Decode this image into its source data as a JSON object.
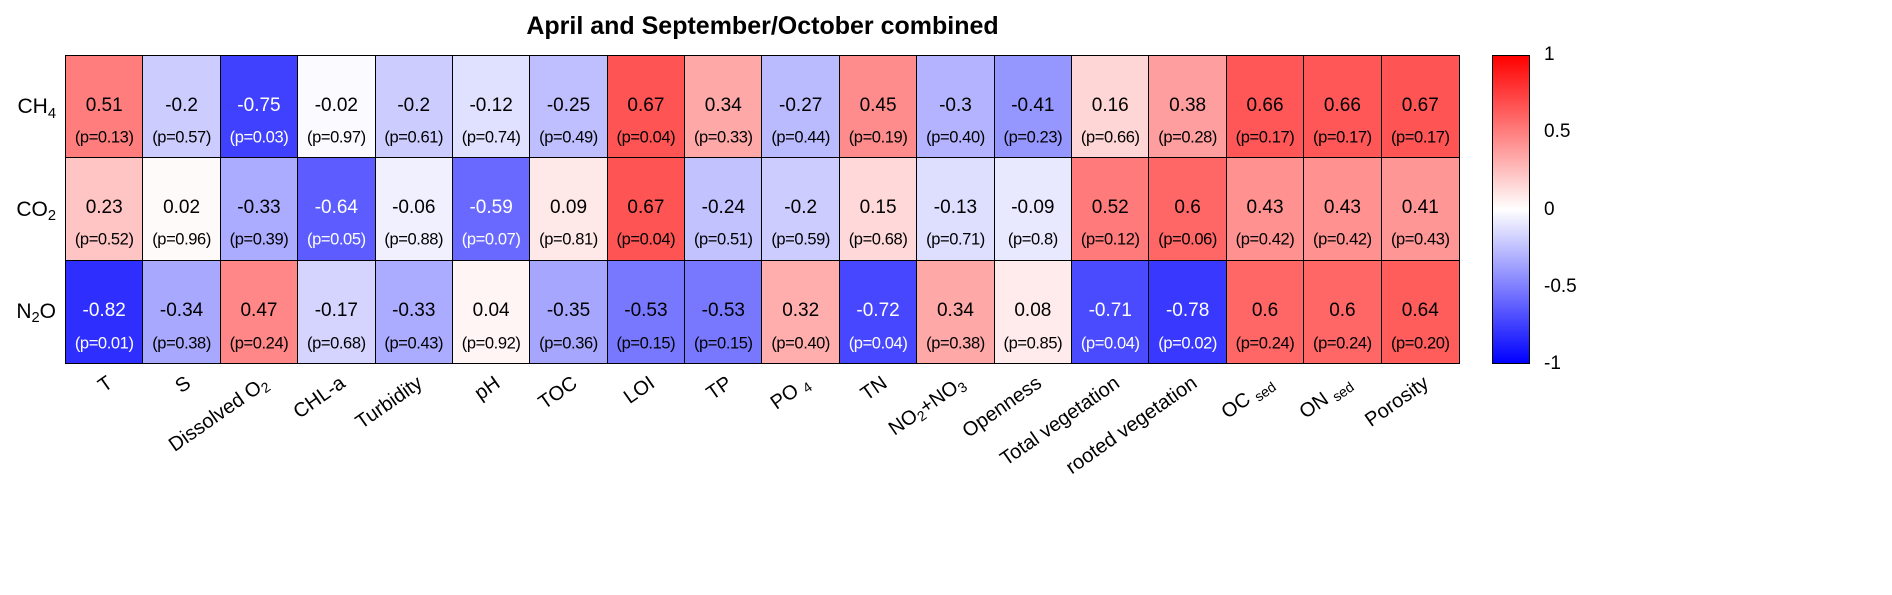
{
  "title": "April and September/October combined",
  "chart_data": {
    "type": "heatmap",
    "title": "April and September/October combined",
    "x_categories": [
      "T",
      "S",
      "Dissolved O2",
      "CHL-a",
      "Turbidity",
      "pH",
      "TOC",
      "LOI",
      "TP",
      "PO4",
      "TN",
      "NO2+NO3",
      "Openness",
      "Total vegetation",
      "rooted vegetation",
      "OC sed",
      "ON sed",
      "Porosity"
    ],
    "y_categories": [
      "CH4",
      "CO2",
      "N2O"
    ],
    "row_label_segments": [
      [
        {
          "t": "CH"
        },
        {
          "t": "4",
          "s": 1
        }
      ],
      [
        {
          "t": "CO"
        },
        {
          "t": "2",
          "s": 1
        }
      ],
      [
        {
          "t": "N"
        },
        {
          "t": "2",
          "s": 1
        },
        {
          "t": "O"
        }
      ]
    ],
    "col_label_segments": [
      [
        {
          "t": "T"
        }
      ],
      [
        {
          "t": "S"
        }
      ],
      [
        {
          "t": "Dissolved O"
        },
        {
          "t": "2",
          "s": 1
        }
      ],
      [
        {
          "t": "CHL-a"
        }
      ],
      [
        {
          "t": "Turbidity"
        }
      ],
      [
        {
          "t": "pH"
        }
      ],
      [
        {
          "t": "TOC"
        }
      ],
      [
        {
          "t": "LOI"
        }
      ],
      [
        {
          "t": "TP"
        }
      ],
      [
        {
          "t": "PO "
        },
        {
          "t": "4",
          "s": 1
        }
      ],
      [
        {
          "t": "TN"
        }
      ],
      [
        {
          "t": "NO"
        },
        {
          "t": "2",
          "s": 1
        },
        {
          "t": "+NO"
        },
        {
          "t": "3",
          "s": 1
        }
      ],
      [
        {
          "t": "Openness"
        }
      ],
      [
        {
          "t": "Total vegetation"
        }
      ],
      [
        {
          "t": "rooted vegetation"
        }
      ],
      [
        {
          "t": "OC "
        },
        {
          "t": "sed",
          "s": 1
        }
      ],
      [
        {
          "t": "ON "
        },
        {
          "t": "sed",
          "s": 1
        }
      ],
      [
        {
          "t": "Porosity"
        }
      ]
    ],
    "values": [
      [
        "0.51",
        "-0.2",
        "-0.75",
        "-0.02",
        "-0.2",
        "-0.12",
        "-0.25",
        "0.67",
        "0.34",
        "-0.27",
        "0.45",
        "-0.3",
        "-0.41",
        "0.16",
        "0.38",
        "0.66",
        "0.66",
        "0.67"
      ],
      [
        "0.23",
        "0.02",
        "-0.33",
        "-0.64",
        "-0.06",
        "-0.59",
        "0.09",
        "0.67",
        "-0.24",
        "-0.2",
        "0.15",
        "-0.13",
        "-0.09",
        "0.52",
        "0.6",
        "0.43",
        "0.43",
        "0.41"
      ],
      [
        "-0.82",
        "-0.34",
        "0.47",
        "-0.17",
        "-0.33",
        "0.04",
        "-0.35",
        "-0.53",
        "-0.53",
        "0.32",
        "-0.72",
        "0.34",
        "0.08",
        "-0.71",
        "-0.78",
        "0.6",
        "0.6",
        "0.64"
      ]
    ],
    "p_labels": [
      [
        "(p=0.13)",
        "(p=0.57)",
        "(p=0.03)",
        "(p=0.97)",
        "(p=0.61)",
        "(p=0.74)",
        "(p=0.49)",
        "(p=0.04)",
        "(p=0.33)",
        "(p=0.44)",
        "(p=0.19)",
        "(p=0.40)",
        "(p=0.23)",
        "(p=0.66)",
        "(p=0.28)",
        "(p=0.17)",
        "(p=0.17)",
        "(p=0.17)"
      ],
      [
        "(p=0.52)",
        "(p=0.96)",
        "(p=0.39)",
        "(p=0.05)",
        "(p=0.88)",
        "(p=0.07)",
        "(p=0.81)",
        "(p=0.04)",
        "(p=0.51)",
        "(p=0.59)",
        "(p=0.68)",
        "(p=0.71)",
        "(p=0.8)",
        "(p=0.12)",
        "(p=0.06)",
        "(p=0.42)",
        "(p=0.42)",
        "(p=0.43)"
      ],
      [
        "(p=0.01)",
        "(p=0.38)",
        "(p=0.24)",
        "(p=0.68)",
        "(p=0.43)",
        "(p=0.92)",
        "(p=0.36)",
        "(p=0.15)",
        "(p=0.15)",
        "(p=0.40)",
        "(p=0.04)",
        "(p=0.38)",
        "(p=0.85)",
        "(p=0.04)",
        "(p=0.02)",
        "(p=0.24)",
        "(p=0.24)",
        "(p=0.20)"
      ]
    ],
    "colorbar": {
      "ticks": [
        "1",
        "0.5",
        "0",
        "-0.5",
        "-1"
      ],
      "range": [
        -1,
        1
      ],
      "max_color": "#ff0000",
      "mid_color": "#ffffff",
      "min_color": "#0000ff"
    }
  }
}
